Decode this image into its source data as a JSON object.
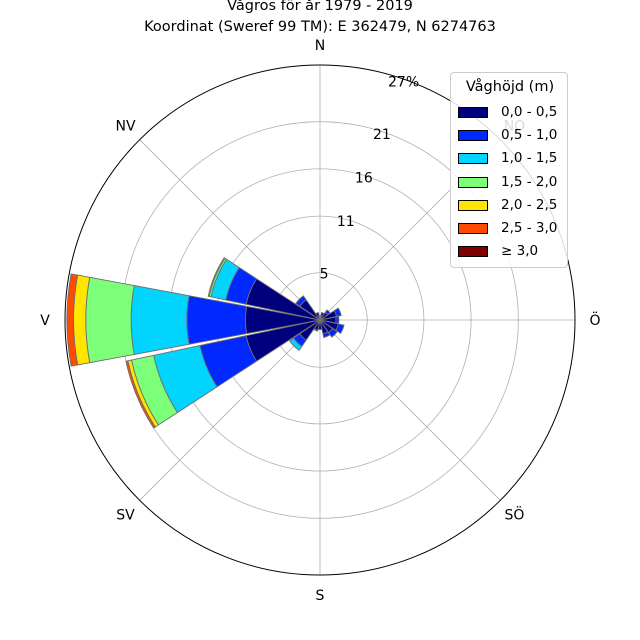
{
  "chart_data": {
    "type": "windrose",
    "title": "Vågros för år 1979 - 2019",
    "subtitle": "Koordinat (Sweref 99 TM): E 362479, N 6274763",
    "directions": [
      "N",
      "NO",
      "Ö",
      "SÖ",
      "S",
      "SV",
      "V",
      "NV"
    ],
    "radial_ticks": [
      "5",
      "11",
      "16",
      "21",
      "27%"
    ],
    "radial_tick_values": [
      5,
      11,
      16,
      21,
      27
    ],
    "rmax": 27,
    "legend_title": "Våghöjd (m)",
    "legend_position": "top-right",
    "bins": [
      "0,0 - 0,5",
      "0,5 - 1,0",
      "1,0 - 1,5",
      "1,5 - 2,0",
      "2,0 - 2,5",
      "2,5 - 3,0",
      "≥ 3,0"
    ],
    "colors": [
      "#00007f",
      "#0028ff",
      "#00d4ff",
      "#7cff79",
      "#ffe500",
      "#ff4a00",
      "#7f0000"
    ],
    "sector_directions_deg": [
      0,
      22.5,
      45,
      67.5,
      90,
      112.5,
      135,
      157.5,
      180,
      202.5,
      225,
      247.5,
      270,
      292.5,
      315,
      337.5
    ],
    "cumulative_percent": [
      [
        0.3,
        0.3,
        0.3,
        0.3,
        0.3,
        0.3,
        0.3
      ],
      [
        0.8,
        0.8,
        0.8,
        0.8,
        0.8,
        0.8,
        0.8
      ],
      [
        1.0,
        1.3,
        1.3,
        1.3,
        1.3,
        1.3,
        1.3
      ],
      [
        1.8,
        2.3,
        2.3,
        2.3,
        2.3,
        2.3,
        2.3
      ],
      [
        1.7,
        2.0,
        2.0,
        2.0,
        2.0,
        2.0,
        2.0
      ],
      [
        2.0,
        2.6,
        2.6,
        2.6,
        2.6,
        2.6,
        2.6
      ],
      [
        1.6,
        2.2,
        2.2,
        2.2,
        2.2,
        2.2,
        2.2
      ],
      [
        1.5,
        1.9,
        1.9,
        1.9,
        1.9,
        1.9,
        1.9
      ],
      [
        1.0,
        1.0,
        1.0,
        1.0,
        1.0,
        1.0,
        1.0
      ],
      [
        1.1,
        1.2,
        1.2,
        1.2,
        1.2,
        1.2,
        1.2
      ],
      [
        2.6,
        3.4,
        3.9,
        3.9,
        3.9,
        3.9,
        3.9
      ],
      [
        8.0,
        13.0,
        18.0,
        20.4,
        20.8,
        21.0,
        21.0
      ],
      [
        7.9,
        14.1,
        20.0,
        24.8,
        26.1,
        26.8,
        26.8
      ],
      [
        8.0,
        10.2,
        11.8,
        12.0,
        12.1,
        12.1,
        12.1
      ],
      [
        2.6,
        3.1,
        3.1,
        3.1,
        3.1,
        3.1,
        3.1
      ],
      [
        0.8,
        0.8,
        0.8,
        0.8,
        0.8,
        0.8,
        0.8
      ]
    ]
  }
}
